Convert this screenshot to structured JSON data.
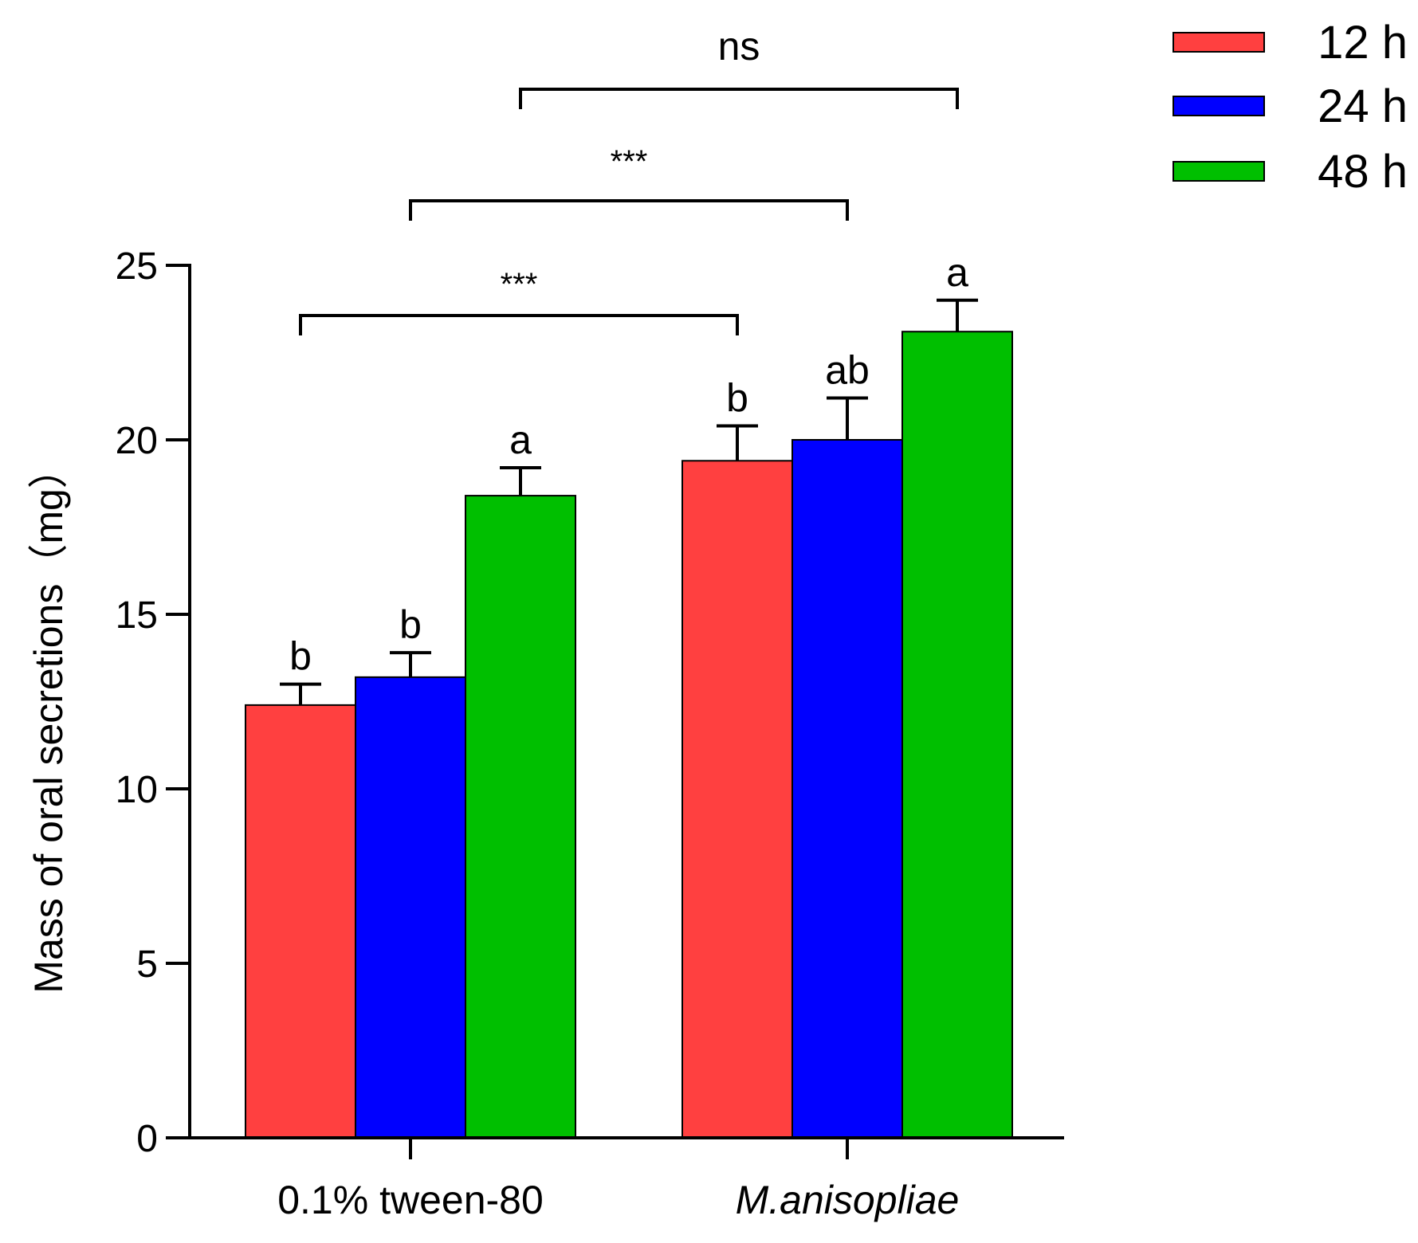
{
  "chart_data": {
    "type": "bar",
    "ylabel": "Mass of oral secretions（mg）",
    "xlabel": "",
    "ylim": [
      0,
      25
    ],
    "yticks": [
      0,
      5,
      10,
      15,
      20,
      25
    ],
    "categories": [
      "0.1% tween-80",
      "M.anisopliae"
    ],
    "category_italic": [
      false,
      true
    ],
    "series": [
      {
        "name": "12 h",
        "color": "#ff4040",
        "values": [
          12.4,
          19.4
        ],
        "errors": [
          0.6,
          1.0
        ],
        "letters": [
          "b",
          "b"
        ]
      },
      {
        "name": "24 h",
        "color": "#0000ff",
        "values": [
          13.2,
          20.0
        ],
        "errors": [
          0.7,
          1.2
        ],
        "letters": [
          "b",
          "ab"
        ]
      },
      {
        "name": "48 h",
        "color": "#00bf00",
        "values": [
          18.4,
          23.1
        ],
        "errors": [
          0.8,
          0.9
        ],
        "letters": [
          "a",
          "a"
        ]
      }
    ],
    "comparisons": [
      {
        "label": "***",
        "from": {
          "category": 0,
          "series": 0
        },
        "to": {
          "category": 1,
          "series": 0
        }
      },
      {
        "label": "***",
        "from": {
          "category": 0,
          "series": 1
        },
        "to": {
          "category": 1,
          "series": 1
        }
      },
      {
        "label": "ns",
        "from": {
          "category": 0,
          "series": 2
        },
        "to": {
          "category": 1,
          "series": 2
        }
      }
    ],
    "legend_position": "top-right"
  }
}
